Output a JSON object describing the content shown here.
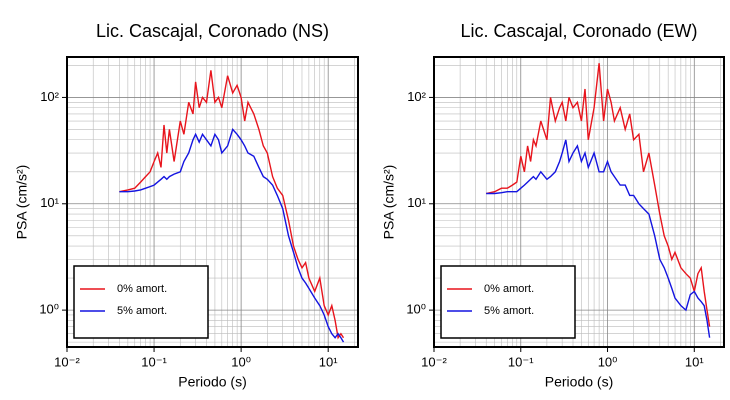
{
  "chart_data": [
    {
      "type": "line",
      "title": "Lic. Cascajal, Coronado (NS)",
      "xlabel": "Periodo (s)",
      "ylabel": "PSA (cm/s²)",
      "log_x": true,
      "log_y": true,
      "grid": true,
      "legend": "lower left",
      "xlim": [
        0.01,
        22
      ],
      "ylim": [
        0.45,
        240
      ],
      "xticks": [
        {
          "value": 0.01,
          "label": "10⁻²"
        },
        {
          "value": 0.1,
          "label": "10⁻¹"
        },
        {
          "value": 1,
          "label": "10⁰"
        },
        {
          "value": 10,
          "label": "10¹"
        }
      ],
      "yticks": [
        {
          "value": 1,
          "label": "10⁰"
        },
        {
          "value": 10,
          "label": "10¹"
        },
        {
          "value": 100,
          "label": "10²"
        }
      ],
      "x": [
        0.04,
        0.05,
        0.06,
        0.07,
        0.08,
        0.09,
        0.1,
        0.11,
        0.12,
        0.13,
        0.14,
        0.15,
        0.17,
        0.2,
        0.22,
        0.25,
        0.28,
        0.3,
        0.33,
        0.36,
        0.4,
        0.45,
        0.5,
        0.55,
        0.6,
        0.7,
        0.8,
        0.9,
        1.0,
        1.1,
        1.2,
        1.4,
        1.6,
        1.8,
        2.0,
        2.3,
        2.6,
        3.0,
        3.5,
        4.0,
        4.5,
        5,
        5.5,
        6,
        7,
        8,
        9,
        10,
        11,
        12,
        13,
        14,
        15
      ],
      "series": [
        {
          "name": "0% amort.",
          "color": "#e8141c",
          "values": [
            13,
            13.5,
            14,
            16,
            18,
            20,
            25,
            30,
            22,
            55,
            30,
            50,
            25,
            60,
            45,
            90,
            70,
            140,
            80,
            100,
            90,
            180,
            90,
            100,
            80,
            160,
            110,
            130,
            100,
            60,
            90,
            70,
            50,
            35,
            30,
            18,
            14,
            12,
            7,
            4,
            3,
            2.5,
            2.8,
            2,
            1.5,
            2,
            1.1,
            0.9,
            1.1,
            0.8,
            0.55,
            0.6,
            0.55
          ]
        },
        {
          "name": "5% amort.",
          "color": "#1414e0",
          "values": [
            13,
            13,
            13.2,
            13.5,
            14,
            14.5,
            15,
            16,
            17,
            18,
            17,
            18,
            19,
            20,
            25,
            30,
            40,
            45,
            38,
            45,
            40,
            35,
            45,
            40,
            30,
            35,
            50,
            45,
            40,
            35,
            30,
            28,
            22,
            18,
            17,
            15,
            12,
            9,
            5,
            3.5,
            2.5,
            2,
            1.8,
            1.6,
            1.3,
            1.1,
            0.9,
            0.7,
            0.6,
            0.55,
            0.6,
            0.55,
            0.5
          ]
        }
      ]
    },
    {
      "type": "line",
      "title": "Lic. Cascajal, Coronado (EW)",
      "xlabel": "Periodo (s)",
      "ylabel": "PSA (cm/s²)",
      "log_x": true,
      "log_y": true,
      "grid": true,
      "legend": "lower left",
      "xlim": [
        0.01,
        22
      ],
      "ylim": [
        0.45,
        240
      ],
      "xticks": [
        {
          "value": 0.01,
          "label": "10⁻²"
        },
        {
          "value": 0.1,
          "label": "10⁻¹"
        },
        {
          "value": 1,
          "label": "10⁰"
        },
        {
          "value": 10,
          "label": "10¹"
        }
      ],
      "yticks": [
        {
          "value": 1,
          "label": "10⁰"
        },
        {
          "value": 10,
          "label": "10¹"
        },
        {
          "value": 100,
          "label": "10²"
        }
      ],
      "x": [
        0.04,
        0.05,
        0.06,
        0.07,
        0.08,
        0.09,
        0.1,
        0.11,
        0.12,
        0.13,
        0.14,
        0.15,
        0.17,
        0.2,
        0.22,
        0.25,
        0.28,
        0.3,
        0.33,
        0.36,
        0.4,
        0.45,
        0.5,
        0.55,
        0.6,
        0.7,
        0.8,
        0.9,
        1.0,
        1.1,
        1.2,
        1.4,
        1.6,
        1.8,
        2.0,
        2.3,
        2.6,
        3.0,
        3.5,
        4.0,
        4.5,
        5,
        5.5,
        6,
        7,
        8,
        9,
        10,
        11,
        12,
        13,
        14,
        15
      ],
      "series": [
        {
          "name": "0% amort.",
          "color": "#e8141c",
          "values": [
            12.5,
            13,
            14,
            14,
            15,
            16,
            28,
            20,
            35,
            25,
            40,
            35,
            60,
            40,
            100,
            60,
            80,
            90,
            60,
            100,
            80,
            90,
            60,
            120,
            40,
            80,
            210,
            60,
            120,
            90,
            60,
            80,
            50,
            70,
            40,
            45,
            20,
            30,
            15,
            8,
            5,
            4,
            3,
            3.5,
            2.5,
            2.2,
            2,
            1.5,
            2.2,
            2.5,
            1.5,
            1,
            0.7
          ]
        },
        {
          "name": "5% amort.",
          "color": "#1414e0",
          "values": [
            12.5,
            12.5,
            12.7,
            13,
            13,
            13,
            14,
            15,
            16,
            17,
            18,
            17,
            20,
            17,
            18,
            20,
            25,
            30,
            40,
            25,
            30,
            35,
            25,
            30,
            22,
            30,
            20,
            20,
            25,
            20,
            18,
            15,
            15,
            12,
            12,
            10,
            9,
            8,
            5,
            3,
            2.5,
            2,
            1.6,
            1.3,
            1.1,
            1,
            1.4,
            1.5,
            1.3,
            1.2,
            1.1,
            0.8,
            0.55
          ]
        }
      ]
    }
  ]
}
